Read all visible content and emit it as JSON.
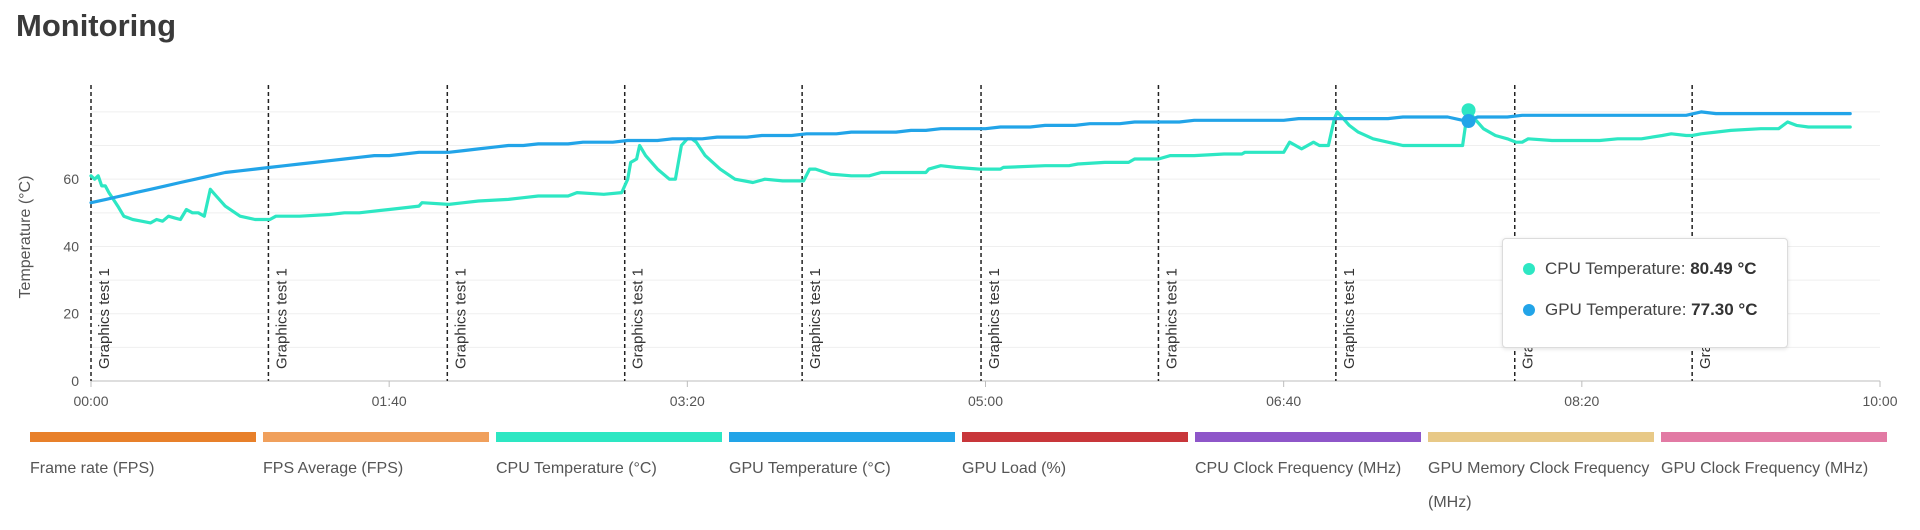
{
  "page": {
    "title": "Monitoring"
  },
  "tooltip": {
    "rows": [
      {
        "label": "CPU Temperature:",
        "value": "80.49 °C",
        "color": "#2de7c3"
      },
      {
        "label": "GPU Temperature:",
        "value": "77.30 °C",
        "color": "#22a4e8"
      }
    ]
  },
  "legend": [
    {
      "label": "Frame rate (FPS)",
      "color": "#e8802a"
    },
    {
      "label": "FPS Average (FPS)",
      "color": "#f0a05c"
    },
    {
      "label": "CPU Temperature (°C)",
      "color": "#2de7c3"
    },
    {
      "label": "GPU Temperature (°C)",
      "color": "#22a4e8"
    },
    {
      "label": "GPU Load (%)",
      "color": "#c8363a"
    },
    {
      "label": "CPU Clock Frequency (MHz)",
      "color": "#8e56c9"
    },
    {
      "label": "GPU Memory Clock Frequency (MHz)",
      "color": "#e8c987"
    },
    {
      "label": "GPU Clock Frequency (MHz)",
      "color": "#e27aa4"
    }
  ],
  "chart_data": {
    "type": "line",
    "title": "",
    "xlabel": "",
    "ylabel": "Temperature (°C)",
    "xlim": [
      0,
      600
    ],
    "ylim": [
      0,
      88
    ],
    "x_ticks": [
      {
        "value": 0,
        "label": "00:00"
      },
      {
        "value": 100,
        "label": "01:40"
      },
      {
        "value": 200,
        "label": "03:20"
      },
      {
        "value": 300,
        "label": "05:00"
      },
      {
        "value": 400,
        "label": "06:40"
      },
      {
        "value": 500,
        "label": "08:20"
      },
      {
        "value": 600,
        "label": "10:00"
      }
    ],
    "y_ticks": [
      0,
      20,
      40,
      60
    ],
    "grid": {
      "y": true,
      "x": false
    },
    "legend_position": "bottom",
    "annotations": [
      {
        "x": 0,
        "label": "Graphics test 1"
      },
      {
        "x": 59.5,
        "label": "Graphics test 1"
      },
      {
        "x": 119.5,
        "label": "Graphics test 1"
      },
      {
        "x": 179.0,
        "label": "Graphics test 1"
      },
      {
        "x": 238.5,
        "label": "Graphics test 1"
      },
      {
        "x": 298.5,
        "label": "Graphics test 1"
      },
      {
        "x": 358.0,
        "label": "Graphics test 1"
      },
      {
        "x": 417.5,
        "label": "Graphics test 1"
      },
      {
        "x": 477.5,
        "label": "Graphics test 1"
      },
      {
        "x": 537.0,
        "label": "Graphics test 1"
      }
    ],
    "hover": {
      "x": 462,
      "cpu": 80.49,
      "gpu": 77.3
    },
    "series": [
      {
        "name": "CPU Temperature (°C)",
        "color": "#2de7c3",
        "points": [
          [
            0,
            61
          ],
          [
            1.2,
            60
          ],
          [
            2.4,
            61
          ],
          [
            3.6,
            58
          ],
          [
            4.8,
            58
          ],
          [
            6,
            56
          ],
          [
            7.5,
            54
          ],
          [
            9,
            52
          ],
          [
            11,
            49
          ],
          [
            14,
            48
          ],
          [
            17,
            47.5
          ],
          [
            20,
            47
          ],
          [
            22,
            48
          ],
          [
            24,
            47.5
          ],
          [
            26,
            49
          ],
          [
            28,
            48.5
          ],
          [
            30,
            48
          ],
          [
            32,
            51
          ],
          [
            34,
            50
          ],
          [
            36,
            50
          ],
          [
            38,
            49
          ],
          [
            40,
            57
          ],
          [
            42,
            55
          ],
          [
            45,
            52
          ],
          [
            50,
            49
          ],
          [
            55,
            48
          ],
          [
            60,
            48
          ],
          [
            62,
            49
          ],
          [
            70,
            49
          ],
          [
            80,
            49.5
          ],
          [
            85,
            50
          ],
          [
            90,
            50
          ],
          [
            100,
            51
          ],
          [
            110,
            52
          ],
          [
            111,
            53
          ],
          [
            120,
            52.5
          ],
          [
            125,
            53
          ],
          [
            130,
            53.5
          ],
          [
            140,
            54
          ],
          [
            145,
            54.5
          ],
          [
            150,
            55
          ],
          [
            160,
            55
          ],
          [
            163,
            56
          ],
          [
            172,
            55.5
          ],
          [
            178,
            56
          ],
          [
            180,
            60
          ],
          [
            181,
            65
          ],
          [
            183,
            66
          ],
          [
            184,
            70
          ],
          [
            186,
            67
          ],
          [
            190,
            63
          ],
          [
            194,
            60
          ],
          [
            196,
            60
          ],
          [
            198,
            70
          ],
          [
            200,
            72
          ],
          [
            201.5,
            72
          ],
          [
            203,
            71
          ],
          [
            206,
            67
          ],
          [
            211,
            63
          ],
          [
            216,
            60
          ],
          [
            222,
            59
          ],
          [
            226,
            60
          ],
          [
            232,
            59.5
          ],
          [
            238,
            59.5
          ],
          [
            239,
            59.5
          ],
          [
            241,
            63
          ],
          [
            243,
            63
          ],
          [
            248,
            61.5
          ],
          [
            255,
            61
          ],
          [
            261,
            61
          ],
          [
            265,
            62
          ],
          [
            275,
            62
          ],
          [
            280,
            62
          ],
          [
            281,
            63
          ],
          [
            285,
            64
          ],
          [
            290,
            63.5
          ],
          [
            298,
            63
          ],
          [
            305,
            63
          ],
          [
            306,
            63.5
          ],
          [
            320,
            64
          ],
          [
            328,
            64
          ],
          [
            331,
            64.5
          ],
          [
            340,
            65
          ],
          [
            348,
            65
          ],
          [
            350,
            66
          ],
          [
            356,
            66
          ],
          [
            358,
            66
          ],
          [
            362,
            67
          ],
          [
            370,
            67
          ],
          [
            380,
            67.5
          ],
          [
            386,
            67.5
          ],
          [
            387,
            68
          ],
          [
            390,
            68
          ],
          [
            399,
            68
          ],
          [
            400,
            68
          ],
          [
            402,
            71
          ],
          [
            404,
            70
          ],
          [
            406,
            69
          ],
          [
            410,
            71
          ],
          [
            412,
            70
          ],
          [
            415,
            70
          ],
          [
            417,
            78
          ],
          [
            418,
            80
          ],
          [
            420,
            78
          ],
          [
            422,
            76
          ],
          [
            425,
            74
          ],
          [
            430,
            72
          ],
          [
            435,
            71
          ],
          [
            440,
            70
          ],
          [
            445,
            70
          ],
          [
            455,
            70
          ],
          [
            460,
            70
          ],
          [
            461,
            76
          ],
          [
            462,
            80.49
          ],
          [
            464,
            78
          ],
          [
            467,
            75
          ],
          [
            471,
            73
          ],
          [
            475,
            72
          ],
          [
            478,
            71
          ],
          [
            480,
            71
          ],
          [
            482,
            72
          ],
          [
            490,
            71.5
          ],
          [
            500,
            71.5
          ],
          [
            506,
            71.5
          ],
          [
            512,
            72
          ],
          [
            520,
            72
          ],
          [
            527,
            73
          ],
          [
            530,
            73.5
          ],
          [
            535,
            73
          ],
          [
            537,
            73
          ],
          [
            540,
            73.5
          ],
          [
            545,
            74
          ],
          [
            550,
            74.5
          ],
          [
            560,
            75
          ],
          [
            566,
            75
          ],
          [
            569,
            77
          ],
          [
            572,
            76
          ],
          [
            576,
            75.5
          ],
          [
            582,
            75.5
          ],
          [
            590,
            75.5
          ]
        ]
      },
      {
        "name": "GPU Temperature (°C)",
        "color": "#22a4e8",
        "points": [
          [
            0,
            53
          ],
          [
            5,
            54
          ],
          [
            10,
            55
          ],
          [
            15,
            56
          ],
          [
            20,
            57
          ],
          [
            25,
            58
          ],
          [
            30,
            59
          ],
          [
            35,
            60
          ],
          [
            40,
            61
          ],
          [
            45,
            62
          ],
          [
            50,
            62.5
          ],
          [
            55,
            63
          ],
          [
            60,
            63.5
          ],
          [
            65,
            64
          ],
          [
            70,
            64.5
          ],
          [
            75,
            65
          ],
          [
            80,
            65.5
          ],
          [
            85,
            66
          ],
          [
            90,
            66.5
          ],
          [
            95,
            67
          ],
          [
            100,
            67
          ],
          [
            105,
            67.5
          ],
          [
            110,
            68
          ],
          [
            115,
            68
          ],
          [
            120,
            68
          ],
          [
            125,
            68.5
          ],
          [
            130,
            69
          ],
          [
            135,
            69.5
          ],
          [
            140,
            70
          ],
          [
            145,
            70
          ],
          [
            150,
            70.5
          ],
          [
            155,
            70.5
          ],
          [
            160,
            70.5
          ],
          [
            165,
            71
          ],
          [
            170,
            71
          ],
          [
            175,
            71
          ],
          [
            180,
            71.5
          ],
          [
            185,
            71.5
          ],
          [
            190,
            71.5
          ],
          [
            195,
            72
          ],
          [
            200,
            72
          ],
          [
            205,
            72
          ],
          [
            210,
            72.5
          ],
          [
            215,
            72.5
          ],
          [
            220,
            72.5
          ],
          [
            225,
            73
          ],
          [
            230,
            73
          ],
          [
            235,
            73
          ],
          [
            240,
            73.5
          ],
          [
            245,
            73.5
          ],
          [
            250,
            73.5
          ],
          [
            255,
            74
          ],
          [
            260,
            74
          ],
          [
            265,
            74
          ],
          [
            270,
            74
          ],
          [
            275,
            74.5
          ],
          [
            280,
            74.5
          ],
          [
            285,
            75
          ],
          [
            290,
            75
          ],
          [
            295,
            75
          ],
          [
            300,
            75
          ],
          [
            305,
            75.5
          ],
          [
            310,
            75.5
          ],
          [
            315,
            75.5
          ],
          [
            320,
            76
          ],
          [
            325,
            76
          ],
          [
            330,
            76
          ],
          [
            335,
            76.5
          ],
          [
            340,
            76.5
          ],
          [
            345,
            76.5
          ],
          [
            350,
            77
          ],
          [
            355,
            77
          ],
          [
            360,
            77
          ],
          [
            365,
            77
          ],
          [
            370,
            77.5
          ],
          [
            375,
            77.5
          ],
          [
            380,
            77.5
          ],
          [
            385,
            77.5
          ],
          [
            390,
            77.5
          ],
          [
            395,
            77.5
          ],
          [
            400,
            77.5
          ],
          [
            405,
            78
          ],
          [
            410,
            78
          ],
          [
            415,
            78
          ],
          [
            420,
            78
          ],
          [
            425,
            78
          ],
          [
            430,
            78
          ],
          [
            435,
            78
          ],
          [
            440,
            78.5
          ],
          [
            445,
            78.5
          ],
          [
            450,
            78.5
          ],
          [
            455,
            78.5
          ],
          [
            460,
            77.5
          ],
          [
            462,
            77.3
          ],
          [
            465,
            78.5
          ],
          [
            470,
            78.5
          ],
          [
            475,
            78.5
          ],
          [
            480,
            79
          ],
          [
            485,
            79
          ],
          [
            490,
            79
          ],
          [
            495,
            79
          ],
          [
            500,
            79
          ],
          [
            505,
            79
          ],
          [
            510,
            79
          ],
          [
            515,
            79
          ],
          [
            520,
            79
          ],
          [
            525,
            79
          ],
          [
            530,
            79
          ],
          [
            535,
            79
          ],
          [
            540,
            80
          ],
          [
            545,
            79.5
          ],
          [
            550,
            79.5
          ],
          [
            555,
            79.5
          ],
          [
            560,
            79.5
          ],
          [
            565,
            79.5
          ],
          [
            570,
            79.5
          ],
          [
            575,
            79.5
          ],
          [
            580,
            79.5
          ],
          [
            585,
            79.5
          ],
          [
            590,
            79.5
          ]
        ]
      }
    ]
  }
}
